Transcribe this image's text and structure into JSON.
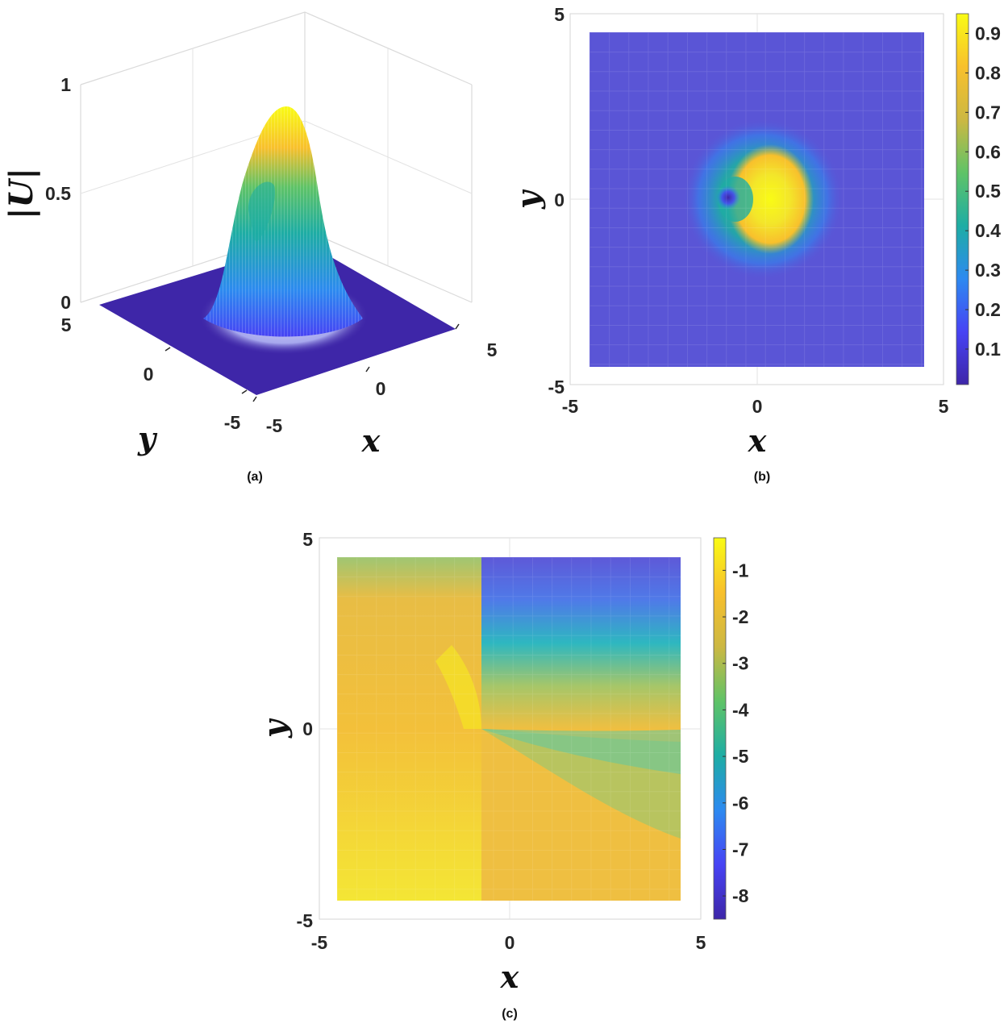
{
  "colors": {
    "parula": [
      "#3e26a8",
      "#4743f4",
      "#2d8af0",
      "#1eada4",
      "#5fc367",
      "#ccb843",
      "#f8c02c",
      "#f9fb15"
    ]
  },
  "chart_data": [
    {
      "type": "surface",
      "panel_label": "(a)",
      "xlabel": "x",
      "ylabel": "y",
      "zlabel": "|U|",
      "xlim": [
        -5,
        5
      ],
      "ylim": [
        -5,
        5
      ],
      "zlim": [
        0,
        1
      ],
      "x_ticks": [
        "-5",
        "0",
        "5"
      ],
      "y_ticks": [
        "-5",
        "0",
        "5"
      ],
      "z_ticks": [
        "0",
        "0.5",
        "1"
      ],
      "peak_value": 0.95,
      "peak_location": [
        0.1,
        0.0
      ],
      "vortex_location": [
        -0.8,
        0.0
      ],
      "grid": true
    },
    {
      "type": "heatmap",
      "panel_label": "(b)",
      "xlabel": "x",
      "ylabel": "y",
      "xlim": [
        -5,
        5
      ],
      "ylim": [
        -5,
        5
      ],
      "x_ticks": [
        "-5",
        "0",
        "5"
      ],
      "y_ticks": [
        "-5",
        "0",
        "5"
      ],
      "colorbar": {
        "min": 0.01,
        "max": 0.95,
        "ticks": [
          "0.1",
          "0.2",
          "0.3",
          "0.4",
          "0.5",
          "0.6",
          "0.7",
          "0.8",
          "0.9"
        ]
      },
      "peak_value": 0.95,
      "vortex_location": [
        -0.8,
        0.0
      ],
      "grid": true
    },
    {
      "type": "heatmap",
      "panel_label": "(c)",
      "xlabel": "x",
      "ylabel": "y",
      "xlim": [
        -5,
        5
      ],
      "ylim": [
        -5,
        5
      ],
      "x_ticks": [
        "-5",
        "0",
        "5"
      ],
      "y_ticks": [
        "-5",
        "0",
        "5"
      ],
      "colorbar": {
        "min": -8.5,
        "max": -0.3,
        "ticks": [
          "-1",
          "-2",
          "-3",
          "-4",
          "-5",
          "-6",
          "-7",
          "-8"
        ]
      },
      "branch_cut": {
        "x": -0.8,
        "y_from": 0,
        "y_to": 4.5
      },
      "grid": true
    }
  ]
}
